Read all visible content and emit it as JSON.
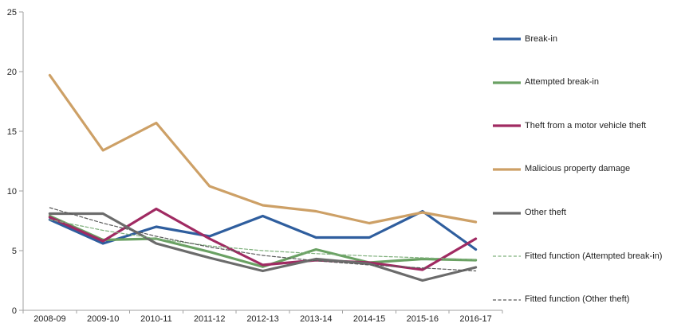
{
  "chart_data": {
    "type": "line",
    "title": "",
    "xlabel": "",
    "ylabel": "",
    "ylim": [
      0,
      25
    ],
    "yticks": [
      0,
      5,
      10,
      15,
      20,
      25
    ],
    "grid": false,
    "legend_position": "right",
    "categories": [
      "2008-09",
      "2009-10",
      "2010-11",
      "2011-12",
      "2012-13",
      "2013-14",
      "2014-15",
      "2015-16",
      "2016-17"
    ],
    "series": [
      {
        "name": "Break-in",
        "color": "#2f5e9e",
        "style": "solid",
        "values": [
          7.6,
          5.6,
          7.0,
          6.2,
          7.9,
          6.1,
          6.1,
          8.3,
          5.1
        ]
      },
      {
        "name": "Attempted break-in",
        "color": "#6aa163",
        "style": "solid",
        "values": [
          7.9,
          5.9,
          6.0,
          4.9,
          3.65,
          5.1,
          4.0,
          4.3,
          4.2
        ]
      },
      {
        "name": "Theft from a motor vehicle theft",
        "color": "#a02a62",
        "style": "solid",
        "values": [
          7.8,
          5.8,
          8.5,
          6.0,
          3.8,
          4.2,
          4.0,
          3.4,
          6.0
        ]
      },
      {
        "name": "Malicious property damage",
        "color": "#cda066",
        "style": "solid",
        "values": [
          19.7,
          13.4,
          15.7,
          10.4,
          8.8,
          8.3,
          7.3,
          8.2,
          7.4
        ]
      },
      {
        "name": "Other theft",
        "color": "#6b6b6b",
        "style": "solid",
        "values": [
          8.1,
          8.1,
          5.6,
          4.4,
          3.3,
          4.3,
          3.9,
          2.5,
          3.6
        ]
      },
      {
        "name": "Fitted function (Attempted break-in)",
        "color": "#7fb07c",
        "style": "dashed",
        "values": [
          7.6,
          6.7,
          6.0,
          5.4,
          5.0,
          4.75,
          4.55,
          4.4,
          4.25
        ]
      },
      {
        "name": "Fitted function (Other theft)",
        "color": "#595959",
        "style": "dashed",
        "values": [
          8.6,
          7.3,
          6.2,
          5.3,
          4.6,
          4.15,
          3.8,
          3.55,
          3.3
        ]
      }
    ],
    "axis_color": "#a0a0a0",
    "text_color": "#1f1f1f"
  }
}
